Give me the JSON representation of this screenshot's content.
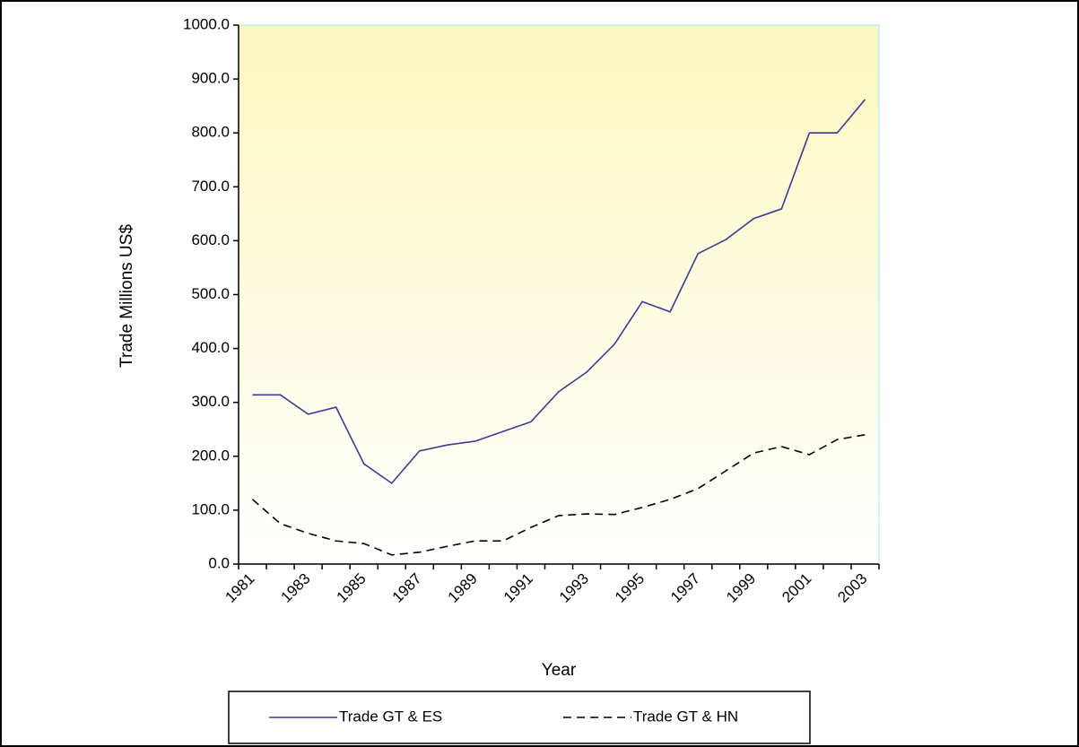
{
  "chart_data": {
    "type": "line",
    "y_label": "Trade Millions US$",
    "x_label": "Year",
    "categories": [
      "1981",
      null,
      "1983",
      null,
      "1985",
      null,
      "1987",
      null,
      "1989",
      null,
      "1991",
      null,
      "1993",
      null,
      "1995",
      null,
      "1997",
      null,
      "1999",
      null,
      "2001",
      null,
      "2003"
    ],
    "series": [
      {
        "name": "Trade GT & ES",
        "color": "#3b3b96",
        "dash": false,
        "values": [
          314,
          314,
          278,
          291,
          186,
          150,
          210,
          221,
          228,
          246,
          264,
          320,
          356,
          408,
          487,
          468,
          576,
          602,
          641,
          659,
          800,
          800,
          862
        ]
      },
      {
        "name": "Trade GT & HN",
        "color": "#000000",
        "dash": true,
        "values": [
          120,
          75,
          57,
          43,
          38,
          17,
          22,
          33,
          43,
          43,
          68,
          90,
          93,
          92,
          105,
          120,
          140,
          173,
          206,
          218,
          203,
          231,
          240
        ]
      }
    ],
    "ylim": [
      0,
      1000
    ],
    "yticks": [
      {
        "value": 0,
        "label": "0.0"
      },
      {
        "value": 100,
        "label": "100.0"
      },
      {
        "value": 200,
        "label": "200.0"
      },
      {
        "value": 300,
        "label": "300.0"
      },
      {
        "value": 400,
        "label": "400.0"
      },
      {
        "value": 500,
        "label": "500.0"
      },
      {
        "value": 600,
        "label": "600.0"
      },
      {
        "value": 700,
        "label": "700.0"
      },
      {
        "value": 800,
        "label": "800.0"
      },
      {
        "value": 900,
        "label": "900.0"
      },
      {
        "value": 1000,
        "label": "1000.0"
      }
    ],
    "legend": "bottom"
  }
}
